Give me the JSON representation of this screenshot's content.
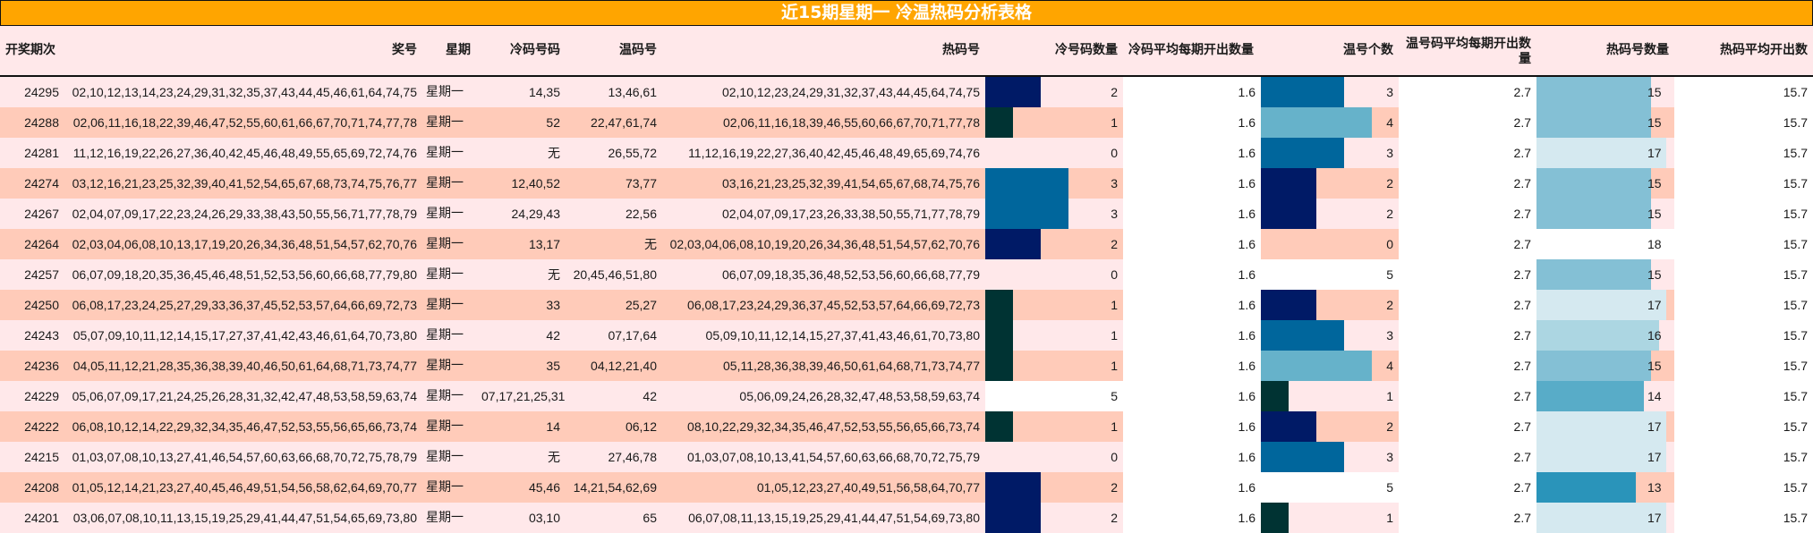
{
  "title": "近15期星期一 冷温热码分析表格",
  "colors": {
    "title_bg": "#FFA500",
    "row_light": "#FFE8EA",
    "row_dark": "#FFCBB9",
    "white": "#FFFFFF",
    "bar_1": "#003333",
    "bar_2": "#001A66",
    "bar_3": "#00669C",
    "bar_4": "#66B2CA",
    "hot_13": "#2A94BA",
    "hot_14": "#58ACC8",
    "hot_15": "#84C0D5",
    "hot_16": "#ACD6E2",
    "hot_17": "#D5E9F0"
  },
  "headers": {
    "period": "开奖期次",
    "numbers": "奖号",
    "weekday": "星期",
    "cold_codes": "冷码号码",
    "warm_codes": "温码号",
    "hot_codes": "热码号",
    "cold_count": "冷号码数量",
    "cold_avg": "冷码平均每期开出数量",
    "warm_count": "温号个数",
    "warm_avg": "温号码平均每期开出数量",
    "hot_count": "热码号数量",
    "hot_avg": "热码平均开出数"
  },
  "rows": [
    {
      "period": "24295",
      "numbers": "02,10,12,13,14,23,24,29,31,32,35,37,43,44,45,46,61,64,74,75",
      "weekday": "星期一",
      "cold": "14,35",
      "warm": "13,46,61",
      "hot": "02,10,12,23,24,29,31,32,37,43,44,45,64,74,75",
      "cold_count": "2",
      "cold_avg": "1.6",
      "warm_count": "3",
      "warm_avg": "2.7",
      "hot_count": "15",
      "hot_avg": "15.7"
    },
    {
      "period": "24288",
      "numbers": "02,06,11,16,18,22,39,46,47,52,55,60,61,66,67,70,71,74,77,78",
      "weekday": "星期一",
      "cold": "52",
      "warm": "22,47,61,74",
      "hot": "02,06,11,16,18,39,46,55,60,66,67,70,71,77,78",
      "cold_count": "1",
      "cold_avg": "1.6",
      "warm_count": "4",
      "warm_avg": "2.7",
      "hot_count": "15",
      "hot_avg": "15.7"
    },
    {
      "period": "24281",
      "numbers": "11,12,16,19,22,26,27,36,40,42,45,46,48,49,55,65,69,72,74,76",
      "weekday": "星期一",
      "cold": "无",
      "warm": "26,55,72",
      "hot": "11,12,16,19,22,27,36,40,42,45,46,48,49,65,69,74,76",
      "cold_count": "0",
      "cold_avg": "1.6",
      "warm_count": "3",
      "warm_avg": "2.7",
      "hot_count": "17",
      "hot_avg": "15.7"
    },
    {
      "period": "24274",
      "numbers": "03,12,16,21,23,25,32,39,40,41,52,54,65,67,68,73,74,75,76,77",
      "weekday": "星期一",
      "cold": "12,40,52",
      "warm": "73,77",
      "hot": "03,16,21,23,25,32,39,41,54,65,67,68,74,75,76",
      "cold_count": "3",
      "cold_avg": "1.6",
      "warm_count": "2",
      "warm_avg": "2.7",
      "hot_count": "15",
      "hot_avg": "15.7"
    },
    {
      "period": "24267",
      "numbers": "02,04,07,09,17,22,23,24,26,29,33,38,43,50,55,56,71,77,78,79",
      "weekday": "星期一",
      "cold": "24,29,43",
      "warm": "22,56",
      "hot": "02,04,07,09,17,23,26,33,38,50,55,71,77,78,79",
      "cold_count": "3",
      "cold_avg": "1.6",
      "warm_count": "2",
      "warm_avg": "2.7",
      "hot_count": "15",
      "hot_avg": "15.7"
    },
    {
      "period": "24264",
      "numbers": "02,03,04,06,08,10,13,17,19,20,26,34,36,48,51,54,57,62,70,76",
      "weekday": "星期一",
      "cold": "13,17",
      "warm": "无",
      "hot": "02,03,04,06,08,10,19,20,26,34,36,48,51,54,57,62,70,76",
      "cold_count": "2",
      "cold_avg": "1.6",
      "warm_count": "0",
      "warm_avg": "2.7",
      "hot_count": "18",
      "hot_avg": "15.7"
    },
    {
      "period": "24257",
      "numbers": "06,07,09,18,20,35,36,45,46,48,51,52,53,56,60,66,68,77,79,80",
      "weekday": "星期一",
      "cold": "无",
      "warm": "20,45,46,51,80",
      "hot": "06,07,09,18,35,36,48,52,53,56,60,66,68,77,79",
      "cold_count": "0",
      "cold_avg": "1.6",
      "warm_count": "5",
      "warm_avg": "2.7",
      "hot_count": "15",
      "hot_avg": "15.7"
    },
    {
      "period": "24250",
      "numbers": "06,08,17,23,24,25,27,29,33,36,37,45,52,53,57,64,66,69,72,73",
      "weekday": "星期一",
      "cold": "33",
      "warm": "25,27",
      "hot": "06,08,17,23,24,29,36,37,45,52,53,57,64,66,69,72,73",
      "cold_count": "1",
      "cold_avg": "1.6",
      "warm_count": "2",
      "warm_avg": "2.7",
      "hot_count": "17",
      "hot_avg": "15.7"
    },
    {
      "period": "24243",
      "numbers": "05,07,09,10,11,12,14,15,17,27,37,41,42,43,46,61,64,70,73,80",
      "weekday": "星期一",
      "cold": "42",
      "warm": "07,17,64",
      "hot": "05,09,10,11,12,14,15,27,37,41,43,46,61,70,73,80",
      "cold_count": "1",
      "cold_avg": "1.6",
      "warm_count": "3",
      "warm_avg": "2.7",
      "hot_count": "16",
      "hot_avg": "15.7"
    },
    {
      "period": "24236",
      "numbers": "04,05,11,12,21,28,35,36,38,39,40,46,50,61,64,68,71,73,74,77",
      "weekday": "星期一",
      "cold": "35",
      "warm": "04,12,21,40",
      "hot": "05,11,28,36,38,39,46,50,61,64,68,71,73,74,77",
      "cold_count": "1",
      "cold_avg": "1.6",
      "warm_count": "4",
      "warm_avg": "2.7",
      "hot_count": "15",
      "hot_avg": "15.7"
    },
    {
      "period": "24229",
      "numbers": "05,06,07,09,17,21,24,25,26,28,31,32,42,47,48,53,58,59,63,74",
      "weekday": "星期一",
      "cold": "07,17,21,25,31",
      "warm": "42",
      "hot": "05,06,09,24,26,28,32,47,48,53,58,59,63,74",
      "cold_count": "5",
      "cold_avg": "1.6",
      "warm_count": "1",
      "warm_avg": "2.7",
      "hot_count": "14",
      "hot_avg": "15.7"
    },
    {
      "period": "24222",
      "numbers": "06,08,10,12,14,22,29,32,34,35,46,47,52,53,55,56,65,66,73,74",
      "weekday": "星期一",
      "cold": "14",
      "warm": "06,12",
      "hot": "08,10,22,29,32,34,35,46,47,52,53,55,56,65,66,73,74",
      "cold_count": "1",
      "cold_avg": "1.6",
      "warm_count": "2",
      "warm_avg": "2.7",
      "hot_count": "17",
      "hot_avg": "15.7"
    },
    {
      "period": "24215",
      "numbers": "01,03,07,08,10,13,27,41,46,54,57,60,63,66,68,70,72,75,78,79",
      "weekday": "星期一",
      "cold": "无",
      "warm": "27,46,78",
      "hot": "01,03,07,08,10,13,41,54,57,60,63,66,68,70,72,75,79",
      "cold_count": "0",
      "cold_avg": "1.6",
      "warm_count": "3",
      "warm_avg": "2.7",
      "hot_count": "17",
      "hot_avg": "15.7"
    },
    {
      "period": "24208",
      "numbers": "01,05,12,14,21,23,27,40,45,46,49,51,54,56,58,62,64,69,70,77",
      "weekday": "星期一",
      "cold": "45,46",
      "warm": "14,21,54,62,69",
      "hot": "01,05,12,23,27,40,49,51,56,58,64,70,77",
      "cold_count": "2",
      "cold_avg": "1.6",
      "warm_count": "5",
      "warm_avg": "2.7",
      "hot_count": "13",
      "hot_avg": "15.7"
    },
    {
      "period": "24201",
      "numbers": "03,06,07,08,10,11,13,15,19,25,29,41,44,47,51,54,65,69,73,80",
      "weekday": "星期一",
      "cold": "03,10",
      "warm": "65",
      "hot": "06,07,08,11,13,15,19,25,29,41,44,47,51,54,69,73,80",
      "cold_count": "2",
      "cold_avg": "1.6",
      "warm_count": "1",
      "warm_avg": "2.7",
      "hot_count": "17",
      "hot_avg": "15.7"
    }
  ]
}
